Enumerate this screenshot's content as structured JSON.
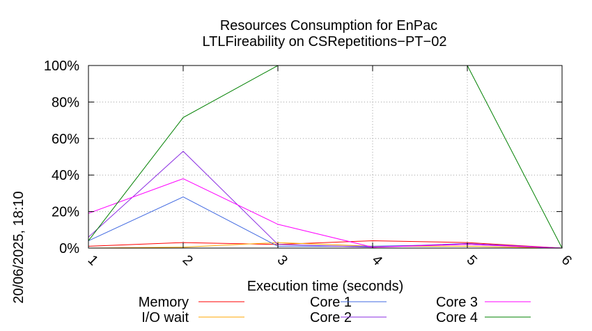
{
  "chart_data": {
    "type": "line",
    "title": "Resources Consumption for EnPac",
    "subtitle": "LTLFireability on CSRepetitions−PT−02",
    "xlabel": "Execution time (seconds)",
    "ylabel": "",
    "side_label": "20/06/2025, 18:10",
    "x": [
      1,
      2,
      3,
      4,
      5,
      6
    ],
    "x_ticks": [
      "1",
      "2",
      "3",
      "4",
      "5",
      "6"
    ],
    "xlim": [
      1,
      6
    ],
    "ylim": [
      0,
      100
    ],
    "y_ticks": [
      "0%",
      "20%",
      "40%",
      "60%",
      "80%",
      "100%"
    ],
    "y_tick_values": [
      0,
      20,
      40,
      60,
      80,
      100
    ],
    "grid": true,
    "legend_position": "bottom",
    "series": [
      {
        "name": "Memory",
        "color": "#ff0000",
        "values": [
          1,
          3,
          2,
          4,
          3,
          0
        ]
      },
      {
        "name": "I/O wait",
        "color": "#ffa500",
        "values": [
          0,
          0.5,
          3,
          1,
          1,
          0
        ]
      },
      {
        "name": "Core 1",
        "color": "#4169e1",
        "values": [
          4,
          28,
          1,
          1,
          2,
          0
        ]
      },
      {
        "name": "Core 2",
        "color": "#8a2be2",
        "values": [
          6,
          53,
          2,
          0.5,
          2.5,
          0
        ]
      },
      {
        "name": "Core 3",
        "color": "#ff00ff",
        "values": [
          19,
          38,
          13,
          0.5,
          2,
          0
        ]
      },
      {
        "name": "Core 4",
        "color": "#008000",
        "values": [
          4,
          71.5,
          100,
          100,
          100,
          0
        ]
      }
    ]
  }
}
